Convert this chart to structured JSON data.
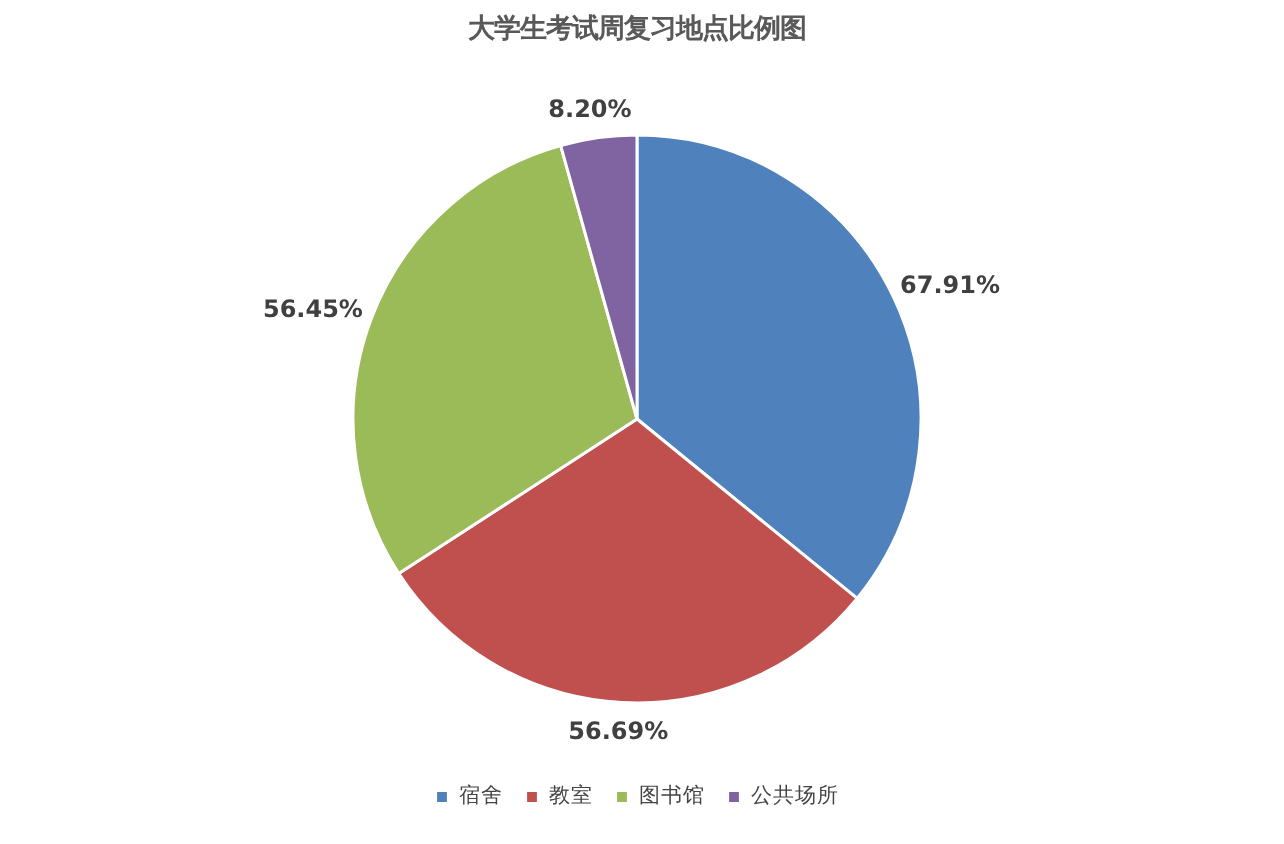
{
  "chart_data": {
    "type": "pie",
    "title": "大学生考试周复习地点比例图",
    "categories": [
      "宿舍",
      "教室",
      "图书馆",
      "公共场所"
    ],
    "values": [
      67.91,
      56.69,
      56.45,
      8.2
    ],
    "value_labels": [
      "67.91%",
      "56.69%",
      "56.45%",
      "8.20%"
    ],
    "colors": [
      "#4f81bd",
      "#c0504d",
      "#9bbb59",
      "#8064a2"
    ],
    "legend": "bottom"
  }
}
